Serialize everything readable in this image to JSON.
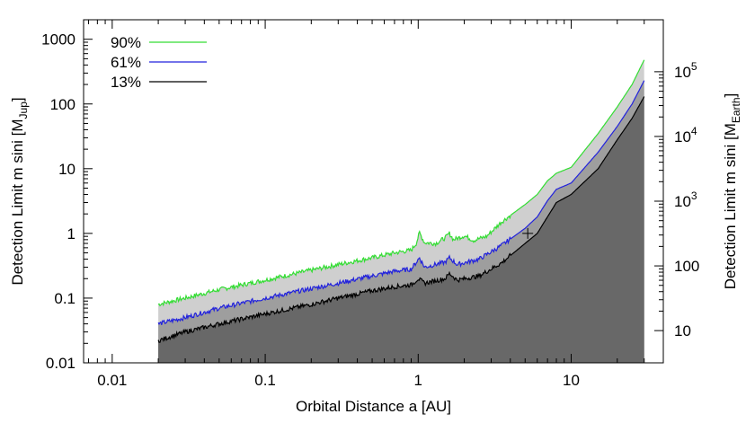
{
  "chart_data": {
    "type": "area",
    "xlabel": "Orbital Distance a [AU]",
    "ylabel_left": {
      "main": "Detection Limit m sini [M",
      "sub": "Jup",
      "end": "]"
    },
    "ylabel_right": {
      "main": "Detection Limit m sini [M",
      "sub": "Earth",
      "end": "]"
    },
    "x_scale": "log",
    "y_scale": "log",
    "xlim": [
      0.0065,
      40
    ],
    "ylim": [
      0.01,
      2000
    ],
    "x_ticks": [
      {
        "value": 0.01,
        "label": "0.01"
      },
      {
        "value": 0.1,
        "label": "0.1"
      },
      {
        "value": 1,
        "label": "1"
      },
      {
        "value": 10,
        "label": "10"
      }
    ],
    "y_ticks": [
      {
        "value": 0.01,
        "label": "0.01"
      },
      {
        "value": 0.1,
        "label": "0.1"
      },
      {
        "value": 1,
        "label": "1"
      },
      {
        "value": 10,
        "label": "10"
      },
      {
        "value": 100,
        "label": "100"
      },
      {
        "value": 1000,
        "label": "1000"
      }
    ],
    "right_ticks": [
      {
        "value": 10,
        "label": "10"
      },
      {
        "value": 100,
        "label": "100"
      },
      {
        "value": 1000,
        "label": "10",
        "exp": "3"
      },
      {
        "value": 10000,
        "label": "10",
        "exp": "4"
      },
      {
        "value": 100000,
        "label": "10",
        "exp": "5"
      }
    ],
    "earth_per_jup": 317.8,
    "legend_position": "top-left",
    "series": [
      {
        "name": "90%",
        "color": "#33dd33",
        "fill": "#cfcfcf",
        "points": [
          [
            0.02,
            0.08
          ],
          [
            0.03,
            0.1
          ],
          [
            0.05,
            0.135
          ],
          [
            0.1,
            0.19
          ],
          [
            0.2,
            0.27
          ],
          [
            0.3,
            0.33
          ],
          [
            0.5,
            0.42
          ],
          [
            0.7,
            0.5
          ],
          [
            0.9,
            0.55
          ],
          [
            0.97,
            0.7
          ],
          [
            1.02,
            1.02
          ],
          [
            1.1,
            0.72
          ],
          [
            1.3,
            0.7
          ],
          [
            1.5,
            0.85
          ],
          [
            1.6,
            1.0
          ],
          [
            1.7,
            0.8
          ],
          [
            2.0,
            0.92
          ],
          [
            2.3,
            0.78
          ],
          [
            2.8,
            0.9
          ],
          [
            3.5,
            1.5
          ],
          [
            5,
            2.8
          ],
          [
            6,
            4
          ],
          [
            7,
            6.5
          ],
          [
            8,
            8.5
          ],
          [
            10,
            10.5
          ],
          [
            15,
            35
          ],
          [
            20,
            90
          ],
          [
            25,
            200
          ],
          [
            30,
            480
          ]
        ]
      },
      {
        "name": "61%",
        "color": "#2222dd",
        "fill": "#9e9e9e",
        "points": [
          [
            0.02,
            0.04
          ],
          [
            0.03,
            0.05
          ],
          [
            0.05,
            0.07
          ],
          [
            0.1,
            0.1
          ],
          [
            0.2,
            0.14
          ],
          [
            0.3,
            0.17
          ],
          [
            0.5,
            0.22
          ],
          [
            0.7,
            0.26
          ],
          [
            0.9,
            0.28
          ],
          [
            1.02,
            0.42
          ],
          [
            1.1,
            0.3
          ],
          [
            1.5,
            0.36
          ],
          [
            1.6,
            0.42
          ],
          [
            1.8,
            0.33
          ],
          [
            2.5,
            0.4
          ],
          [
            3.5,
            0.65
          ],
          [
            5,
            1.2
          ],
          [
            6,
            1.8
          ],
          [
            7,
            3.2
          ],
          [
            8,
            4.8
          ],
          [
            10,
            6
          ],
          [
            15,
            18
          ],
          [
            20,
            45
          ],
          [
            25,
            100
          ],
          [
            30,
            230
          ]
        ]
      },
      {
        "name": "13%",
        "color": "#000000",
        "fill": "#686868",
        "points": [
          [
            0.02,
            0.022
          ],
          [
            0.03,
            0.03
          ],
          [
            0.05,
            0.04
          ],
          [
            0.1,
            0.057
          ],
          [
            0.2,
            0.08
          ],
          [
            0.3,
            0.1
          ],
          [
            0.5,
            0.13
          ],
          [
            0.7,
            0.15
          ],
          [
            0.9,
            0.16
          ],
          [
            1.0,
            0.2
          ],
          [
            1.1,
            0.17
          ],
          [
            1.5,
            0.2
          ],
          [
            1.6,
            0.24
          ],
          [
            1.8,
            0.19
          ],
          [
            2.5,
            0.22
          ],
          [
            3.5,
            0.35
          ],
          [
            5,
            0.7
          ],
          [
            6,
            1.0
          ],
          [
            7,
            1.8
          ],
          [
            8,
            3
          ],
          [
            10,
            4
          ],
          [
            15,
            10
          ],
          [
            20,
            28
          ],
          [
            25,
            60
          ],
          [
            30,
            130
          ]
        ]
      }
    ],
    "marker": {
      "symbol": "+",
      "x": 5.2,
      "y": 1.0
    }
  }
}
